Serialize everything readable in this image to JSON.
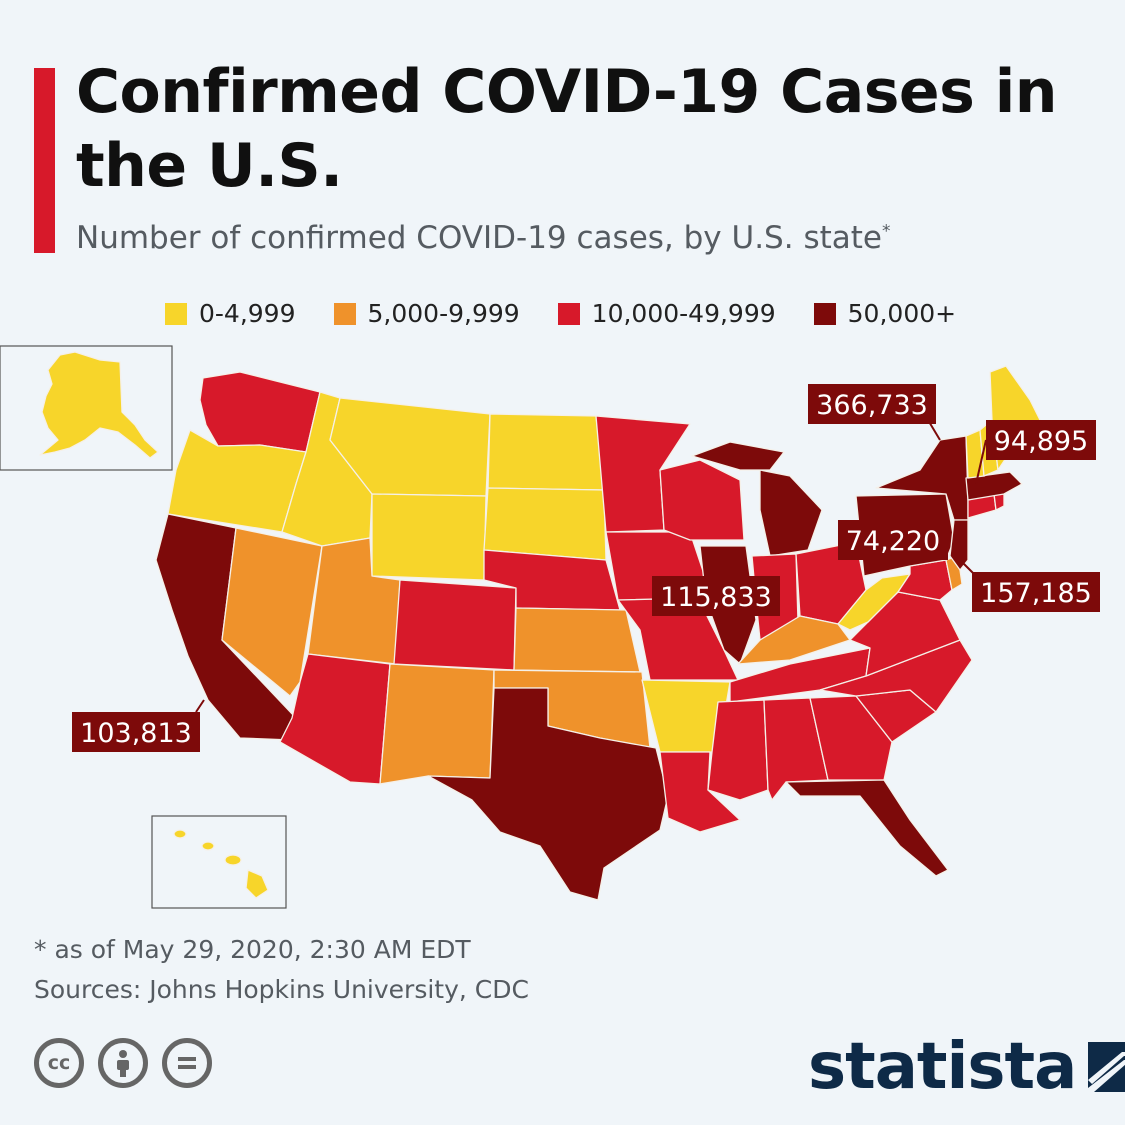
{
  "header": {
    "title": "Confirmed COVID-19 Cases in the U.S.",
    "subtitle": "Number of confirmed COVID-19 cases, by U.S. state",
    "subtitle_mark": "*"
  },
  "legend": [
    {
      "label": "0-4,999",
      "color": "#f7d52a"
    },
    {
      "label": "5,000-9,999",
      "color": "#ef922b"
    },
    {
      "label": "10,000-49,999",
      "color": "#d7192a"
    },
    {
      "label": "50,000+",
      "color": "#7d0a0a"
    }
  ],
  "colors": {
    "low": "#f7d52a",
    "mid": "#ef922b",
    "high": "#d7192a",
    "top": "#7d0a0a",
    "background": "#f0f5f9",
    "brand": "#0e2a47"
  },
  "callouts": {
    "new_york": "366,733",
    "massachusetts": "94,895",
    "pennsylvania": "74,220",
    "new_jersey": "157,185",
    "illinois": "115,833",
    "california": "103,813"
  },
  "chart_data": {
    "type": "choropleth",
    "bins": [
      "0-4,999",
      "5,000-9,999",
      "10,000-49,999",
      "50,000+"
    ],
    "states": {
      "Alaska": "0-4,999",
      "Hawaii": "0-4,999",
      "Washington": "10,000-49,999",
      "Oregon": "0-4,999",
      "California": "50,000+",
      "Nevada": "5,000-9,999",
      "Idaho": "0-4,999",
      "Montana": "0-4,999",
      "Wyoming": "0-4,999",
      "Utah": "5,000-9,999",
      "Arizona": "10,000-49,999",
      "Colorado": "10,000-49,999",
      "New Mexico": "5,000-9,999",
      "North Dakota": "0-4,999",
      "South Dakota": "0-4,999",
      "Nebraska": "10,000-49,999",
      "Kansas": "5,000-9,999",
      "Oklahoma": "5,000-9,999",
      "Texas": "50,000+",
      "Minnesota": "10,000-49,999",
      "Iowa": "10,000-49,999",
      "Missouri": "10,000-49,999",
      "Arkansas": "0-4,999",
      "Louisiana": "10,000-49,999",
      "Wisconsin": "10,000-49,999",
      "Illinois": "50,000+",
      "Michigan": "50,000+",
      "Indiana": "10,000-49,999",
      "Ohio": "10,000-49,999",
      "Kentucky": "5,000-9,999",
      "Tennessee": "10,000-49,999",
      "Mississippi": "10,000-49,999",
      "Alabama": "10,000-49,999",
      "Georgia": "10,000-49,999",
      "Florida": "50,000+",
      "South Carolina": "10,000-49,999",
      "North Carolina": "10,000-49,999",
      "Virginia": "10,000-49,999",
      "West Virginia": "0-4,999",
      "Maryland": "10,000-49,999",
      "Delaware": "5,000-9,999",
      "Pennsylvania": "50,000+",
      "New York": "50,000+",
      "New Jersey": "50,000+",
      "Connecticut": "10,000-49,999",
      "Rhode Island": "10,000-49,999",
      "Massachusetts": "50,000+",
      "Vermont": "0-4,999",
      "New Hampshire": "0-4,999",
      "Maine": "0-4,999"
    },
    "labeled_values": {
      "New York": 366733,
      "Massachusetts": 94895,
      "Pennsylvania": 74220,
      "New Jersey": 157185,
      "Illinois": 115833,
      "California": 103813
    }
  },
  "footer": {
    "footnote": "* as of May 29, 2020, 2:30 AM EDT",
    "sources": "Sources: Johns Hopkins University, CDC",
    "logo": "statista",
    "cc_icons": [
      "cc-icon",
      "attribution-icon",
      "no-derivatives-icon"
    ]
  }
}
